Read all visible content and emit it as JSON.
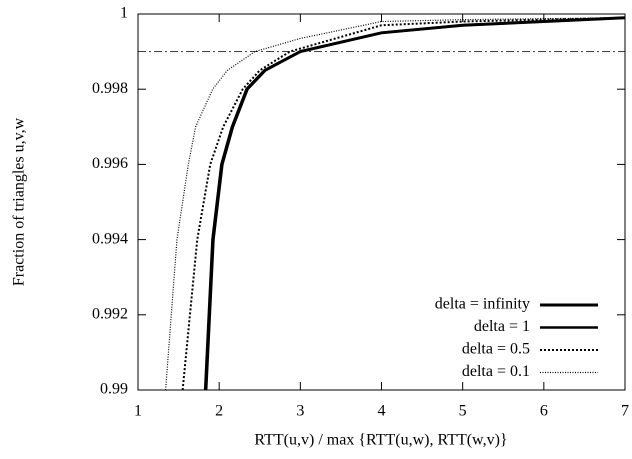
{
  "chart_data": {
    "type": "line",
    "xlabel": "RTT(u,v) / max {RTT(u,w), RTT(w,v)}",
    "ylabel": "Fraction of triangles u,v,w",
    "xlim": [
      1,
      7
    ],
    "ylim": [
      0.99,
      1
    ],
    "xticks": [
      1,
      2,
      3,
      4,
      5,
      6,
      7
    ],
    "yticks": [
      0.99,
      0.992,
      0.994,
      0.996,
      0.998,
      1
    ],
    "hline": 0.999,
    "legend": "bottom-right",
    "series": [
      {
        "name": "delta = infinity",
        "color": "#000000",
        "line_width": 3,
        "dash": "solid",
        "x": [
          1.83,
          1.92,
          2.03,
          2.16,
          2.34,
          2.56,
          3.0,
          4,
          5,
          6,
          7
        ],
        "values": [
          0.99,
          0.994,
          0.996,
          0.997,
          0.998,
          0.9985,
          0.999,
          0.9995,
          0.9997,
          0.9998,
          0.9999
        ]
      },
      {
        "name": "delta = 1",
        "color": "#000000",
        "line_width": 2.5,
        "dash": "solid",
        "x": [
          1.84,
          1.93,
          2.04,
          2.17,
          2.35,
          2.57,
          3.0,
          4,
          5,
          6,
          7
        ],
        "values": [
          0.99,
          0.994,
          0.996,
          0.997,
          0.998,
          0.9985,
          0.999,
          0.9995,
          0.9997,
          0.9998,
          0.9999
        ]
      },
      {
        "name": "delta = 0.5",
        "color": "#000000",
        "line_width": 2,
        "dash": "dotted",
        "x": [
          1.55,
          1.73,
          1.89,
          2.05,
          2.29,
          2.5,
          2.87,
          4,
          5,
          7
        ],
        "values": [
          0.99,
          0.994,
          0.996,
          0.997,
          0.998,
          0.9985,
          0.999,
          0.9997,
          0.9998,
          0.9999
        ]
      },
      {
        "name": "delta = 0.1",
        "color": "#000000",
        "line_width": 1.2,
        "dash": "fine-dotted",
        "x": [
          1.34,
          1.48,
          1.62,
          1.71,
          1.92,
          2.1,
          2.44,
          3,
          4,
          5,
          7
        ],
        "values": [
          0.99,
          0.994,
          0.996,
          0.997,
          0.998,
          0.9985,
          0.999,
          0.99935,
          0.9998,
          0.99985,
          0.9999
        ]
      }
    ]
  }
}
